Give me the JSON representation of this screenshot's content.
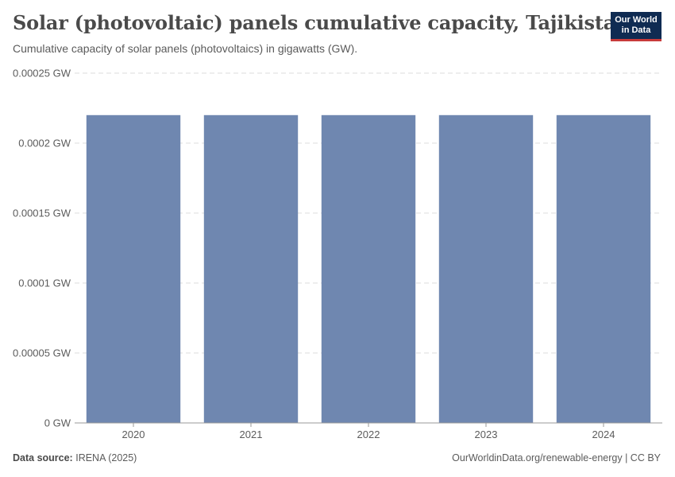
{
  "header": {
    "title": "Solar (photovoltaic) panels cumulative capacity, Tajikistan",
    "subtitle": "Cumulative capacity of solar panels (photovoltaics) in gigawatts (GW)."
  },
  "logo": {
    "line1": "Our World",
    "line2": "in Data"
  },
  "footer": {
    "source_label": "Data source:",
    "source_value": "IRENA (2025)",
    "right_text": "OurWorldinData.org/renewable-energy | CC BY"
  },
  "colors": {
    "bar": "#6f87b0",
    "grid": "#dddddd",
    "axis": "#999999",
    "logo_bg": "#0f2b52",
    "logo_accent": "#c83b3b"
  },
  "chart_data": {
    "type": "bar",
    "categories": [
      "2020",
      "2021",
      "2022",
      "2023",
      "2024"
    ],
    "values": [
      0.00022,
      0.00022,
      0.00022,
      0.00022,
      0.00022
    ],
    "ylim": [
      0,
      0.00025
    ],
    "yticks": [
      0,
      5e-05,
      0.0001,
      0.00015,
      0.0002,
      0.00025
    ],
    "ytick_labels": [
      "0 GW",
      "0.00005 GW",
      "0.0001 GW",
      "0.00015 GW",
      "0.0002 GW",
      "0.00025 GW"
    ],
    "grid": true
  }
}
